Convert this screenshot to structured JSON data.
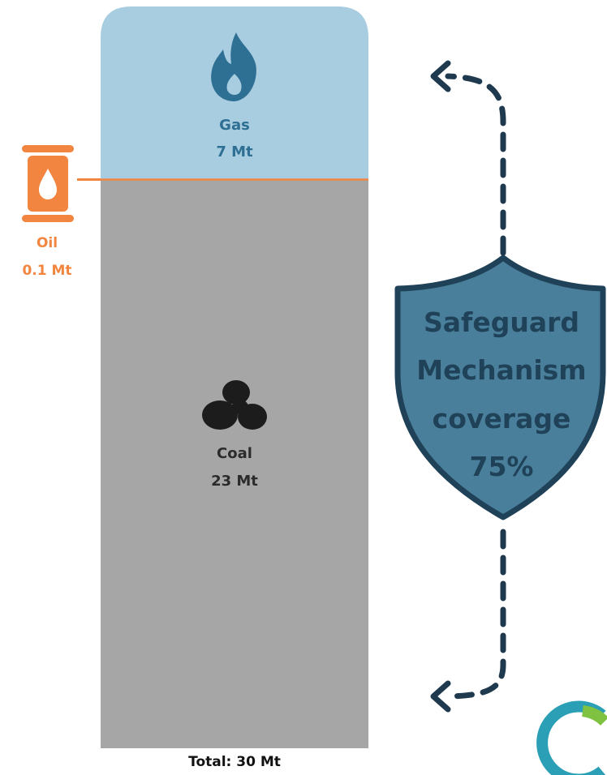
{
  "chart_data": {
    "type": "stacked-bar",
    "segments": [
      {
        "name": "Coal",
        "value_label": "23 Mt",
        "value": 23,
        "color": "#a6a6a6",
        "icon": "coal-icon"
      },
      {
        "name": "Gas",
        "value_label": "7 Mt",
        "value": 7,
        "color": "#a9cde0",
        "icon": "flame-icon"
      },
      {
        "name": "Oil",
        "value_label": "0.1 Mt",
        "value": 0.1,
        "color": "#f2853f",
        "icon": "oil-barrel-icon"
      }
    ],
    "total_label": "Total: 30 Mt",
    "total": 30,
    "coverage": {
      "lines": [
        "Safeguard",
        "Mechanism",
        "coverage",
        "75%"
      ],
      "percent": 75,
      "icon": "shield-icon"
    }
  },
  "colors": {
    "gas_fill": "#a9cde0",
    "gas_text": "#2e6f94",
    "coal_fill": "#a6a6a6",
    "oil": "#f2853f",
    "shield_fill": "#4a7f9c",
    "shield_stroke": "#1f4258",
    "arrow": "#1f3a4f"
  },
  "logo": {
    "icon": "brand-logo-icon"
  }
}
